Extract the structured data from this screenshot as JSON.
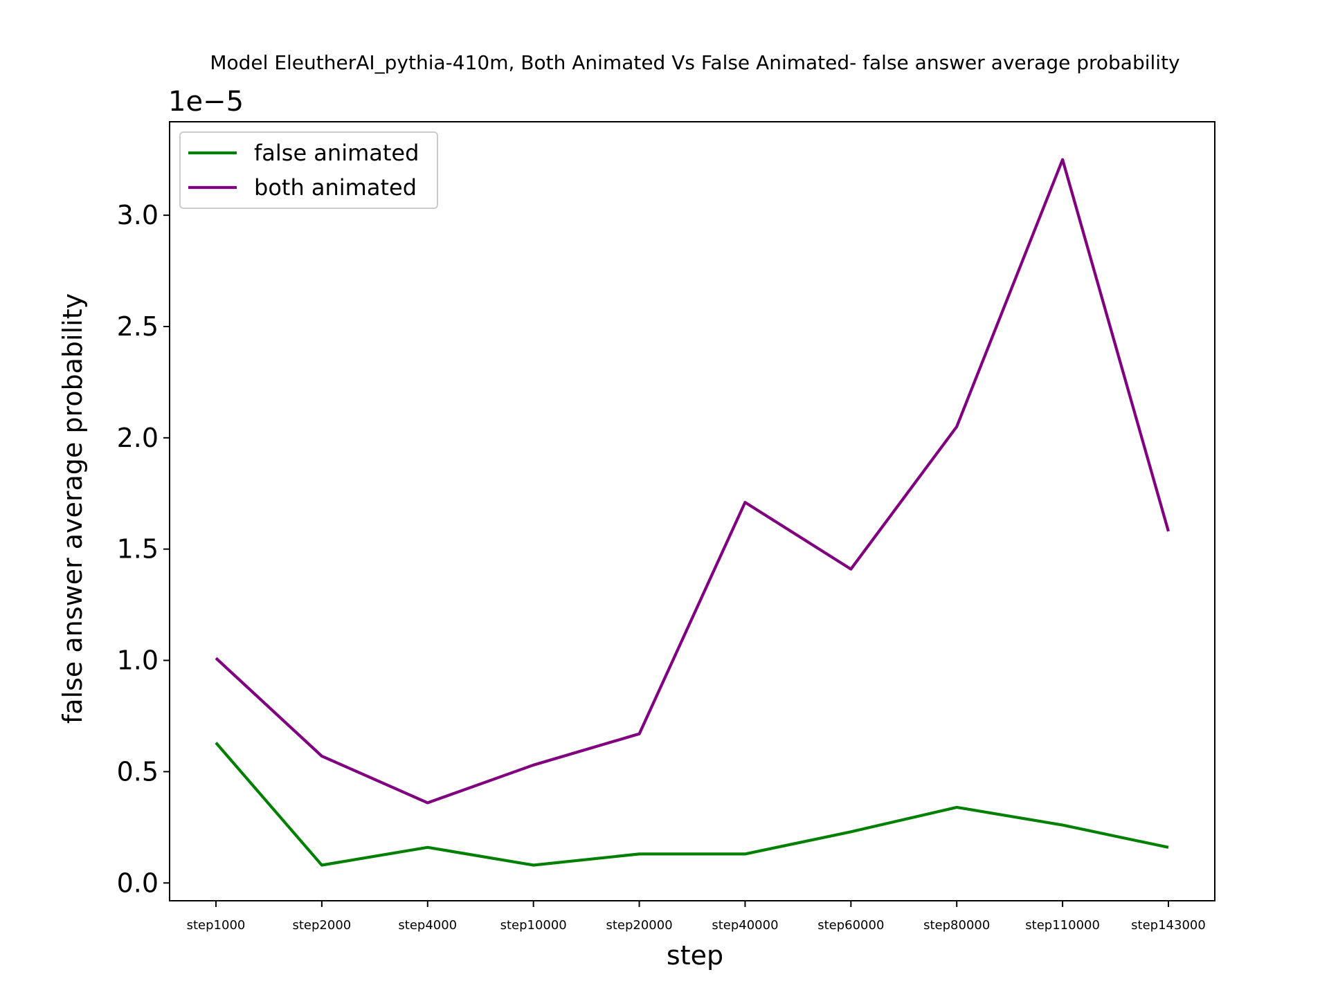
{
  "chart_data": {
    "type": "line",
    "title": "Model EleutherAI_pythia-410m, Both Animated Vs False Animated- false answer average probability",
    "xlabel": "step",
    "ylabel": "false answer average probability",
    "y_offset_label": "1e−5",
    "y_scale_multiplier": 1e-05,
    "categories": [
      "step1000",
      "step2000",
      "step4000",
      "step10000",
      "step20000",
      "step40000",
      "step60000",
      "step80000",
      "step110000",
      "step143000"
    ],
    "ylim": [
      -0.08,
      3.42
    ],
    "yticks": [
      0.0,
      0.5,
      1.0,
      1.5,
      2.0,
      2.5,
      3.0
    ],
    "ytick_labels": [
      "0.0",
      "0.5",
      "1.0",
      "1.5",
      "2.0",
      "2.5",
      "3.0"
    ],
    "grid": false,
    "legend_position": "top-left",
    "series": [
      {
        "name": "false animated",
        "color": "#008000",
        "values": [
          0.63,
          0.08,
          0.16,
          0.08,
          0.13,
          0.13,
          0.23,
          0.34,
          0.26,
          0.16
        ]
      },
      {
        "name": "both animated",
        "color": "#800080",
        "values": [
          1.01,
          0.57,
          0.36,
          0.53,
          0.67,
          1.71,
          1.41,
          2.05,
          3.25,
          1.58
        ]
      }
    ]
  }
}
